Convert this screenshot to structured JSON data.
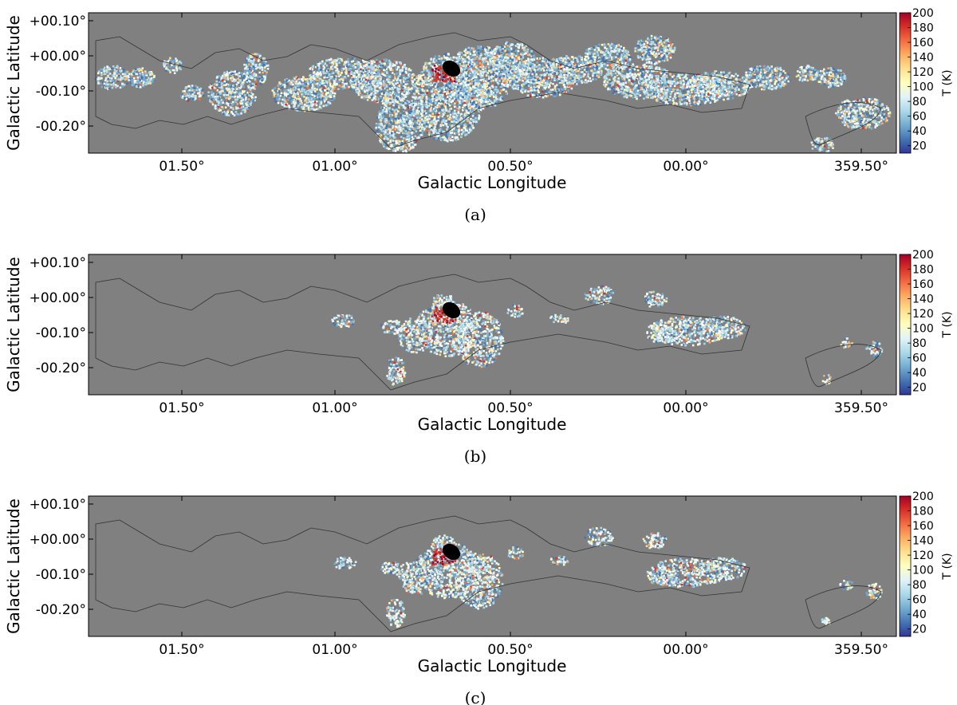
{
  "figure": {
    "panel_captions": [
      "(a)",
      "(b)",
      "(c)"
    ]
  },
  "chart_data": [
    {
      "type": "heatmap",
      "panel": "(a)",
      "xlabel": "Galactic Longitude",
      "ylabel": "Galactic Latitude",
      "x_ticks": [
        "01.50°",
        "01.00°",
        "00.50°",
        "00.00°",
        "359.50°"
      ],
      "y_ticks": [
        "+00.10°",
        "+00.00°",
        "-00.10°",
        "-00.20°"
      ],
      "colorbar": {
        "label": "T (K)",
        "ticks": [
          "20",
          "40",
          "60",
          "80",
          "100",
          "120",
          "140",
          "160",
          "180",
          "200"
        ],
        "range": [
          10,
          200
        ],
        "colormap": "RdYlBu_r"
      },
      "background_color": "#808080",
      "grid": false,
      "coverage": "broad"
    },
    {
      "type": "heatmap",
      "panel": "(b)",
      "xlabel": "Galactic Longitude",
      "ylabel": "Galactic Latitude",
      "x_ticks": [
        "01.50°",
        "01.00°",
        "00.50°",
        "00.00°",
        "359.50°"
      ],
      "y_ticks": [
        "+00.10°",
        "+00.00°",
        "-00.10°",
        "-00.20°"
      ],
      "colorbar": {
        "label": "T (K)",
        "ticks": [
          "20",
          "40",
          "60",
          "80",
          "100",
          "120",
          "140",
          "160",
          "180",
          "200"
        ],
        "range": [
          10,
          200
        ],
        "colormap": "RdYlBu_r"
      },
      "background_color": "#808080",
      "grid": false,
      "coverage": "sparse"
    },
    {
      "type": "heatmap",
      "panel": "(c)",
      "xlabel": "Galactic Longitude",
      "ylabel": "Galactic Latitude",
      "x_ticks": [
        "01.50°",
        "01.00°",
        "00.50°",
        "00.00°",
        "359.50°"
      ],
      "y_ticks": [
        "+00.10°",
        "+00.00°",
        "-00.10°",
        "-00.20°"
      ],
      "colorbar": {
        "label": "T (K)",
        "ticks": [
          "20",
          "40",
          "60",
          "80",
          "100",
          "120",
          "140",
          "160",
          "180",
          "200"
        ],
        "range": [
          10,
          200
        ],
        "colormap": "RdYlBu_r"
      },
      "background_color": "#808080",
      "grid": false,
      "coverage": "sparse"
    }
  ]
}
